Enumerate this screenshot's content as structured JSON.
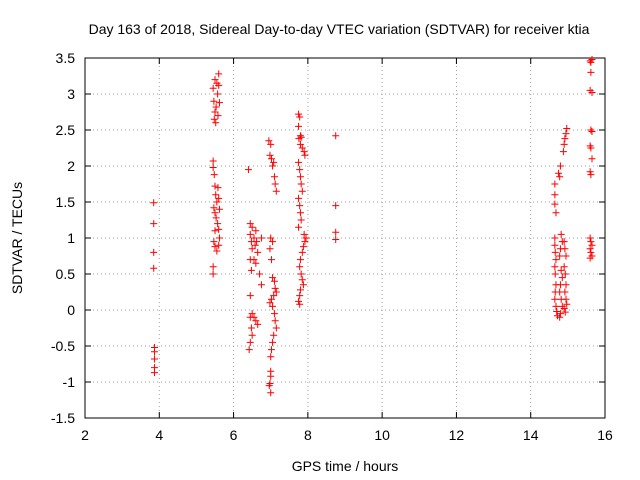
{
  "chart_data": {
    "type": "scatter",
    "title": "Day 163 of 2018, Sidereal Day-to-day VTEC variation (SDTVAR) for receiver ktia",
    "xlabel": "GPS time / hours",
    "ylabel": "SDTVAR / TECUs",
    "xlim": [
      2,
      16
    ],
    "ylim": [
      -1.5,
      3.5
    ],
    "x_ticks": [
      2,
      4,
      6,
      8,
      10,
      12,
      14,
      16
    ],
    "y_ticks": [
      -1.5,
      -1,
      -0.5,
      0,
      0.5,
      1,
      1.5,
      2,
      2.5,
      3,
      3.5
    ],
    "x_tick_labels": [
      "2",
      "4",
      "6",
      "8",
      "10",
      "12",
      "14",
      "16"
    ],
    "y_tick_labels": [
      "-1.5",
      "-1",
      "-0.5",
      "0",
      "0.5",
      "1",
      "1.5",
      "2",
      "2.5",
      "3",
      "3.5"
    ],
    "grid": true,
    "marker": "+",
    "marker_color": "#ff0000",
    "series": [
      {
        "name": "sdtvar",
        "points": [
          [
            3.85,
            1.49
          ],
          [
            3.85,
            1.2
          ],
          [
            3.85,
            0.8
          ],
          [
            3.85,
            0.58
          ],
          [
            3.87,
            -0.52
          ],
          [
            3.87,
            -0.58
          ],
          [
            3.87,
            -0.68
          ],
          [
            3.87,
            -0.8
          ],
          [
            3.87,
            -0.87
          ],
          [
            5.45,
            3.08
          ],
          [
            5.47,
            2.9
          ],
          [
            5.5,
            2.75
          ],
          [
            5.52,
            2.6
          ],
          [
            5.55,
            3.15
          ],
          [
            5.5,
            3.2
          ],
          [
            5.6,
            3.28
          ],
          [
            5.6,
            3.12
          ],
          [
            5.57,
            3.0
          ],
          [
            5.53,
            2.82
          ],
          [
            5.48,
            2.65
          ],
          [
            5.62,
            2.88
          ],
          [
            5.58,
            2.7
          ],
          [
            5.45,
            2.07
          ],
          [
            5.45,
            1.98
          ],
          [
            5.48,
            1.88
          ],
          [
            5.5,
            1.72
          ],
          [
            5.52,
            1.6
          ],
          [
            5.55,
            1.5
          ],
          [
            5.47,
            1.42
          ],
          [
            5.5,
            1.35
          ],
          [
            5.53,
            1.28
          ],
          [
            5.57,
            1.2
          ],
          [
            5.6,
            1.12
          ],
          [
            5.62,
            1.4
          ],
          [
            5.6,
            1.55
          ],
          [
            5.58,
            1.7
          ],
          [
            5.5,
            1.1
          ],
          [
            5.47,
            0.95
          ],
          [
            5.5,
            0.88
          ],
          [
            5.55,
            0.82
          ],
          [
            5.6,
            0.9
          ],
          [
            5.62,
            1.0
          ],
          [
            5.45,
            0.6
          ],
          [
            5.45,
            0.5
          ],
          [
            6.4,
            1.95
          ],
          [
            6.45,
            1.2
          ],
          [
            6.45,
            1.05
          ],
          [
            6.48,
            0.95
          ],
          [
            6.5,
            0.85
          ],
          [
            6.45,
            0.7
          ],
          [
            6.48,
            0.55
          ],
          [
            6.5,
            1.15
          ],
          [
            6.55,
            1.0
          ],
          [
            6.58,
            0.9
          ],
          [
            6.6,
            1.1
          ],
          [
            6.62,
            0.95
          ],
          [
            6.65,
            0.8
          ],
          [
            6.6,
            0.65
          ],
          [
            6.55,
            0.7
          ],
          [
            6.45,
            0.2
          ],
          [
            6.45,
            -0.1
          ],
          [
            6.48,
            -0.25
          ],
          [
            6.5,
            -0.35
          ],
          [
            6.45,
            -0.45
          ],
          [
            6.42,
            -0.55
          ],
          [
            6.5,
            -0.05
          ],
          [
            6.55,
            -0.1
          ],
          [
            6.6,
            -0.15
          ],
          [
            6.65,
            -0.2
          ],
          [
            6.7,
            0.5
          ],
          [
            6.75,
            1.0
          ],
          [
            6.75,
            0.35
          ],
          [
            6.95,
            2.35
          ],
          [
            7.0,
            2.3
          ],
          [
            6.98,
            2.15
          ],
          [
            7.02,
            2.1
          ],
          [
            7.05,
            2.0
          ],
          [
            7.08,
            2.05
          ],
          [
            7.1,
            1.85
          ],
          [
            7.12,
            1.75
          ],
          [
            7.15,
            1.65
          ],
          [
            7.0,
            1.0
          ],
          [
            7.05,
            0.95
          ],
          [
            6.98,
            0.85
          ],
          [
            7.02,
            0.7
          ],
          [
            7.05,
            0.45
          ],
          [
            7.1,
            0.4
          ],
          [
            7.12,
            0.3
          ],
          [
            7.15,
            0.25
          ],
          [
            7.08,
            0.2
          ],
          [
            7.02,
            0.15
          ],
          [
            6.98,
            0.1
          ],
          [
            7.05,
            0.05
          ],
          [
            7.1,
            -0.05
          ],
          [
            7.12,
            -0.15
          ],
          [
            7.15,
            -0.25
          ],
          [
            7.08,
            -0.35
          ],
          [
            7.05,
            -0.45
          ],
          [
            7.02,
            -0.55
          ],
          [
            7.0,
            -0.65
          ],
          [
            7.0,
            -0.85
          ],
          [
            7.0,
            -0.92
          ],
          [
            6.98,
            -1.02
          ],
          [
            6.96,
            -1.05
          ],
          [
            7.0,
            -1.15
          ],
          [
            7.75,
            2.72
          ],
          [
            7.78,
            2.68
          ],
          [
            7.75,
            2.55
          ],
          [
            7.8,
            2.42
          ],
          [
            7.82,
            2.4
          ],
          [
            7.76,
            2.38
          ],
          [
            7.8,
            2.3
          ],
          [
            7.85,
            2.25
          ],
          [
            7.9,
            2.2
          ],
          [
            7.92,
            2.15
          ],
          [
            7.75,
            2.05
          ],
          [
            7.78,
            1.95
          ],
          [
            7.8,
            1.85
          ],
          [
            7.82,
            1.75
          ],
          [
            7.85,
            1.65
          ],
          [
            7.75,
            1.55
          ],
          [
            7.78,
            1.45
          ],
          [
            7.8,
            1.35
          ],
          [
            7.82,
            1.25
          ],
          [
            7.75,
            1.15
          ],
          [
            7.9,
            1.05
          ],
          [
            7.92,
            0.95
          ],
          [
            7.88,
            0.88
          ],
          [
            7.85,
            0.8
          ],
          [
            7.95,
            1.0
          ],
          [
            7.8,
            0.7
          ],
          [
            7.78,
            0.6
          ],
          [
            7.82,
            0.5
          ],
          [
            7.85,
            0.42
          ],
          [
            7.88,
            0.35
          ],
          [
            7.8,
            0.28
          ],
          [
            7.78,
            0.2
          ],
          [
            7.75,
            0.12
          ],
          [
            7.78,
            0.08
          ],
          [
            8.75,
            2.42
          ],
          [
            8.75,
            1.45
          ],
          [
            8.75,
            1.08
          ],
          [
            8.75,
            0.98
          ],
          [
            14.65,
            1.75
          ],
          [
            14.65,
            1.6
          ],
          [
            14.65,
            1.47
          ],
          [
            14.68,
            1.35
          ],
          [
            14.65,
            1.0
          ],
          [
            14.65,
            0.9
          ],
          [
            14.66,
            0.8
          ],
          [
            14.68,
            0.7
          ],
          [
            14.65,
            0.6
          ],
          [
            14.66,
            0.5
          ],
          [
            14.68,
            0.35
          ],
          [
            14.66,
            0.25
          ],
          [
            14.65,
            0.15
          ],
          [
            14.68,
            0.05
          ],
          [
            14.7,
            -0.02
          ],
          [
            14.72,
            -0.08
          ],
          [
            14.75,
            1.9
          ],
          [
            14.78,
            1.85
          ],
          [
            14.8,
            2.0
          ],
          [
            14.82,
            1.05
          ],
          [
            14.85,
            0.95
          ],
          [
            14.8,
            0.85
          ],
          [
            14.78,
            0.75
          ],
          [
            14.82,
            0.55
          ],
          [
            14.85,
            0.45
          ],
          [
            14.8,
            0.35
          ],
          [
            14.78,
            0.25
          ],
          [
            14.82,
            0.15
          ],
          [
            14.85,
            0.05
          ],
          [
            14.8,
            -0.05
          ],
          [
            14.78,
            -0.1
          ],
          [
            14.88,
            2.2
          ],
          [
            14.9,
            2.3
          ],
          [
            14.92,
            2.38
          ],
          [
            14.95,
            2.45
          ],
          [
            14.97,
            2.52
          ],
          [
            14.9,
            0.95
          ],
          [
            14.92,
            0.85
          ],
          [
            14.95,
            0.75
          ],
          [
            14.9,
            0.6
          ],
          [
            14.93,
            0.5
          ],
          [
            14.95,
            0.35
          ],
          [
            14.92,
            0.25
          ],
          [
            14.95,
            0.15
          ],
          [
            14.97,
            0.08
          ],
          [
            14.9,
            0.02
          ],
          [
            14.93,
            -0.03
          ],
          [
            15.6,
            3.46
          ],
          [
            15.62,
            3.44
          ],
          [
            15.65,
            3.48
          ],
          [
            15.62,
            3.3
          ],
          [
            15.6,
            3.05
          ],
          [
            15.65,
            3.02
          ],
          [
            15.62,
            2.5
          ],
          [
            15.65,
            2.48
          ],
          [
            15.6,
            2.28
          ],
          [
            15.62,
            2.25
          ],
          [
            15.65,
            2.1
          ],
          [
            15.6,
            1.92
          ],
          [
            15.62,
            1.88
          ],
          [
            15.6,
            1.0
          ],
          [
            15.62,
            0.95
          ],
          [
            15.65,
            0.9
          ],
          [
            15.6,
            0.85
          ],
          [
            15.62,
            0.8
          ],
          [
            15.65,
            0.75
          ],
          [
            15.6,
            0.72
          ]
        ]
      }
    ]
  }
}
